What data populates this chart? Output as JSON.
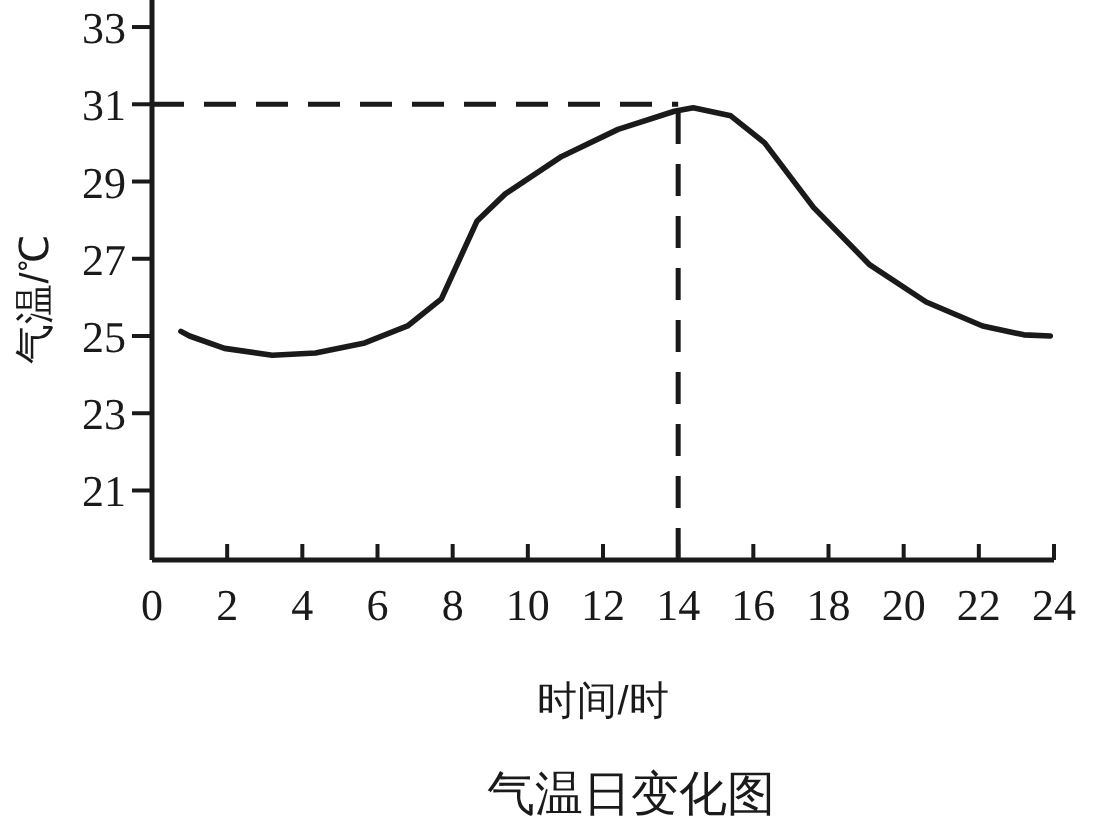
{
  "chart_data": {
    "type": "line",
    "title": "气温日变化图",
    "xlabel": "时间/时",
    "ylabel": "气温/℃",
    "x": [
      0.77,
      1.0,
      1.93,
      3.2,
      4.35,
      5.66,
      6.8,
      7.7,
      8.65,
      9.4,
      10.9,
      12.4,
      13.9,
      14.4,
      15.4,
      16.3,
      17.6,
      19.1,
      20.6,
      22.1,
      23.2,
      23.9
    ],
    "series": [
      {
        "color": "#1a1a1a",
        "values": [
          25.12,
          25.0,
          24.68,
          24.5,
          24.56,
          24.82,
          25.26,
          25.96,
          27.98,
          28.68,
          29.65,
          30.35,
          30.82,
          30.91,
          30.7,
          30.0,
          28.33,
          26.84,
          25.88,
          25.26,
          25.03,
          25.0
        ]
      }
    ],
    "xlim": [
      0,
      24
    ],
    "ylim": [
      19.2,
      33.7
    ],
    "xticks": [
      0,
      2,
      4,
      6,
      8,
      10,
      12,
      14,
      16,
      18,
      20,
      22,
      24
    ],
    "yticks": [
      21,
      23,
      25,
      27,
      29,
      31,
      33
    ],
    "ref_lines": [
      {
        "axis": "y",
        "value": 31,
        "color": "#1a1a1a",
        "line_style": "dashed"
      },
      {
        "axis": "x",
        "value": 14,
        "color": "#1a1a1a",
        "line_style": "dashed"
      }
    ],
    "grid": false,
    "marker": "none",
    "line_style": "solid"
  }
}
